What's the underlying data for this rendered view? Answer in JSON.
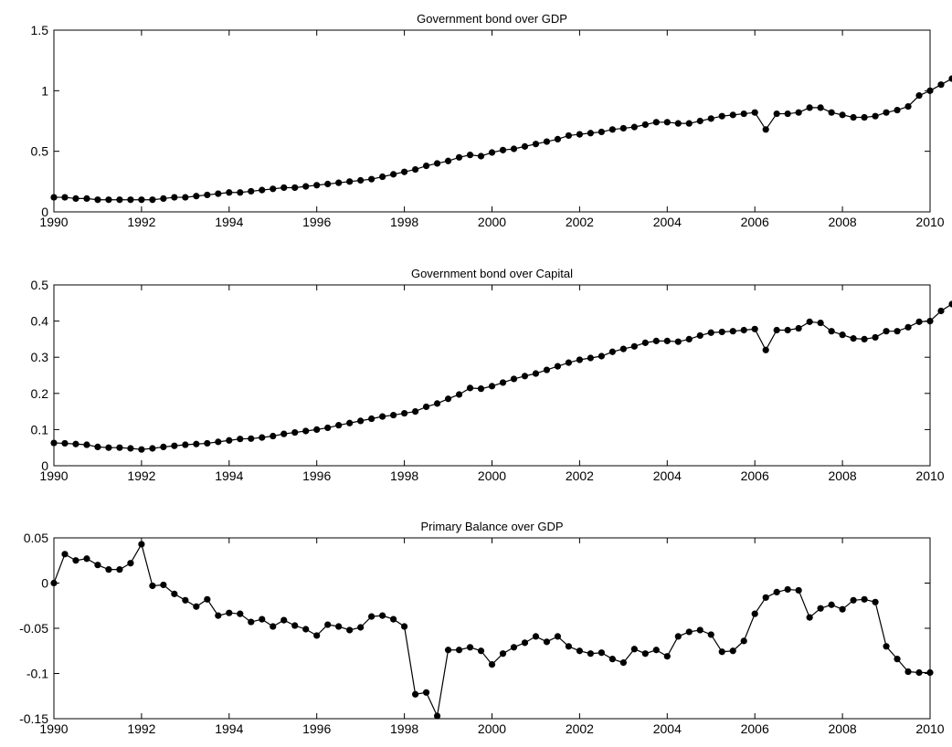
{
  "chart_data": [
    {
      "type": "line",
      "title": "Government bond over GDP",
      "xlabel": "",
      "ylabel": "",
      "xlim": [
        1990,
        2010
      ],
      "ylim": [
        0,
        1.5
      ],
      "xticks": [
        1990,
        1992,
        1994,
        1996,
        1998,
        2000,
        2002,
        2004,
        2006,
        2008,
        2010
      ],
      "yticks": [
        0,
        0.5,
        1,
        1.5
      ],
      "xtick_labels": [
        "1990",
        "1992",
        "1994",
        "1996",
        "1998",
        "2000",
        "2002",
        "2004",
        "2006",
        "2008",
        "2010"
      ],
      "ytick_labels": [
        "0",
        "0.5",
        "1",
        "1.5"
      ],
      "grid": false,
      "series": [
        {
          "x_start": 1990,
          "x_step": 0.25,
          "values": [
            0.12,
            0.12,
            0.11,
            0.11,
            0.1,
            0.1,
            0.1,
            0.1,
            0.1,
            0.1,
            0.11,
            0.12,
            0.12,
            0.13,
            0.14,
            0.15,
            0.16,
            0.16,
            0.17,
            0.18,
            0.19,
            0.2,
            0.2,
            0.21,
            0.22,
            0.23,
            0.24,
            0.25,
            0.26,
            0.27,
            0.29,
            0.31,
            0.33,
            0.35,
            0.38,
            0.4,
            0.42,
            0.45,
            0.47,
            0.46,
            0.49,
            0.51,
            0.52,
            0.54,
            0.56,
            0.58,
            0.6,
            0.63,
            0.64,
            0.65,
            0.66,
            0.68,
            0.69,
            0.7,
            0.72,
            0.74,
            0.74,
            0.73,
            0.73,
            0.75,
            0.77,
            0.79,
            0.8,
            0.81,
            0.82,
            0.68,
            0.81,
            0.81,
            0.82,
            0.86,
            0.86,
            0.82,
            0.8,
            0.78,
            0.78,
            0.79,
            0.82,
            0.84,
            0.87,
            0.96,
            1.0,
            1.05,
            1.1,
            1.06,
            1.05
          ]
        }
      ]
    },
    {
      "type": "line",
      "title": "Government bond over Capital",
      "xlabel": "",
      "ylabel": "",
      "xlim": [
        1990,
        2010
      ],
      "ylim": [
        0,
        0.5
      ],
      "xticks": [
        1990,
        1992,
        1994,
        1996,
        1998,
        2000,
        2002,
        2004,
        2006,
        2008,
        2010
      ],
      "yticks": [
        0,
        0.1,
        0.2,
        0.3,
        0.4,
        0.5
      ],
      "xtick_labels": [
        "1990",
        "1992",
        "1994",
        "1996",
        "1998",
        "2000",
        "2002",
        "2004",
        "2006",
        "2008",
        "2010"
      ],
      "ytick_labels": [
        "0",
        "0.1",
        "0.2",
        "0.3",
        "0.4",
        "0.5"
      ],
      "grid": false,
      "series": [
        {
          "x_start": 1990,
          "x_step": 0.25,
          "values": [
            0.063,
            0.062,
            0.06,
            0.058,
            0.052,
            0.05,
            0.05,
            0.048,
            0.045,
            0.048,
            0.052,
            0.055,
            0.058,
            0.06,
            0.062,
            0.066,
            0.07,
            0.074,
            0.075,
            0.078,
            0.082,
            0.088,
            0.092,
            0.096,
            0.1,
            0.105,
            0.112,
            0.118,
            0.124,
            0.13,
            0.136,
            0.14,
            0.145,
            0.15,
            0.163,
            0.172,
            0.185,
            0.197,
            0.215,
            0.213,
            0.22,
            0.23,
            0.24,
            0.248,
            0.255,
            0.265,
            0.275,
            0.285,
            0.293,
            0.298,
            0.303,
            0.315,
            0.323,
            0.33,
            0.34,
            0.345,
            0.345,
            0.343,
            0.35,
            0.36,
            0.368,
            0.37,
            0.372,
            0.375,
            0.378,
            0.32,
            0.375,
            0.375,
            0.38,
            0.398,
            0.395,
            0.372,
            0.362,
            0.352,
            0.35,
            0.355,
            0.372,
            0.372,
            0.383,
            0.398,
            0.4,
            0.428,
            0.447,
            0.445,
            0.455
          ]
        }
      ]
    },
    {
      "type": "line",
      "title": "Primary Balance over GDP",
      "xlabel": "",
      "ylabel": "",
      "xlim": [
        1990,
        2010
      ],
      "ylim": [
        -0.15,
        0.05
      ],
      "xticks": [
        1990,
        1992,
        1994,
        1996,
        1998,
        2000,
        2002,
        2004,
        2006,
        2008,
        2010
      ],
      "yticks": [
        -0.15,
        -0.1,
        -0.05,
        0,
        0.05
      ],
      "xtick_labels": [
        "1990",
        "1992",
        "1994",
        "1996",
        "1998",
        "2000",
        "2002",
        "2004",
        "2006",
        "2008",
        "2010"
      ],
      "ytick_labels": [
        "-0.15",
        "-0.1",
        "-0.05",
        "0",
        "0.05"
      ],
      "grid": false,
      "series": [
        {
          "x_start": 1990,
          "x_step": 0.25,
          "values": [
            0.0,
            0.032,
            0.025,
            0.027,
            0.02,
            0.015,
            0.015,
            0.022,
            0.043,
            -0.003,
            -0.002,
            -0.012,
            -0.019,
            -0.026,
            -0.018,
            -0.036,
            -0.033,
            -0.034,
            -0.043,
            -0.04,
            -0.048,
            -0.041,
            -0.047,
            -0.051,
            -0.058,
            -0.046,
            -0.048,
            -0.052,
            -0.049,
            -0.037,
            -0.036,
            -0.04,
            -0.048,
            -0.123,
            -0.121,
            -0.147,
            -0.074,
            -0.074,
            -0.071,
            -0.075,
            -0.09,
            -0.078,
            -0.071,
            -0.066,
            -0.059,
            -0.065,
            -0.059,
            -0.07,
            -0.075,
            -0.078,
            -0.077,
            -0.084,
            -0.088,
            -0.073,
            -0.078,
            -0.074,
            -0.081,
            -0.059,
            -0.054,
            -0.052,
            -0.057,
            -0.076,
            -0.075,
            -0.064,
            -0.034,
            -0.016,
            -0.01,
            -0.007,
            -0.008,
            -0.038,
            -0.028,
            -0.024,
            -0.029,
            -0.019,
            -0.018,
            -0.021,
            -0.07,
            -0.084,
            -0.098,
            -0.099,
            -0.099
          ]
        }
      ]
    }
  ]
}
